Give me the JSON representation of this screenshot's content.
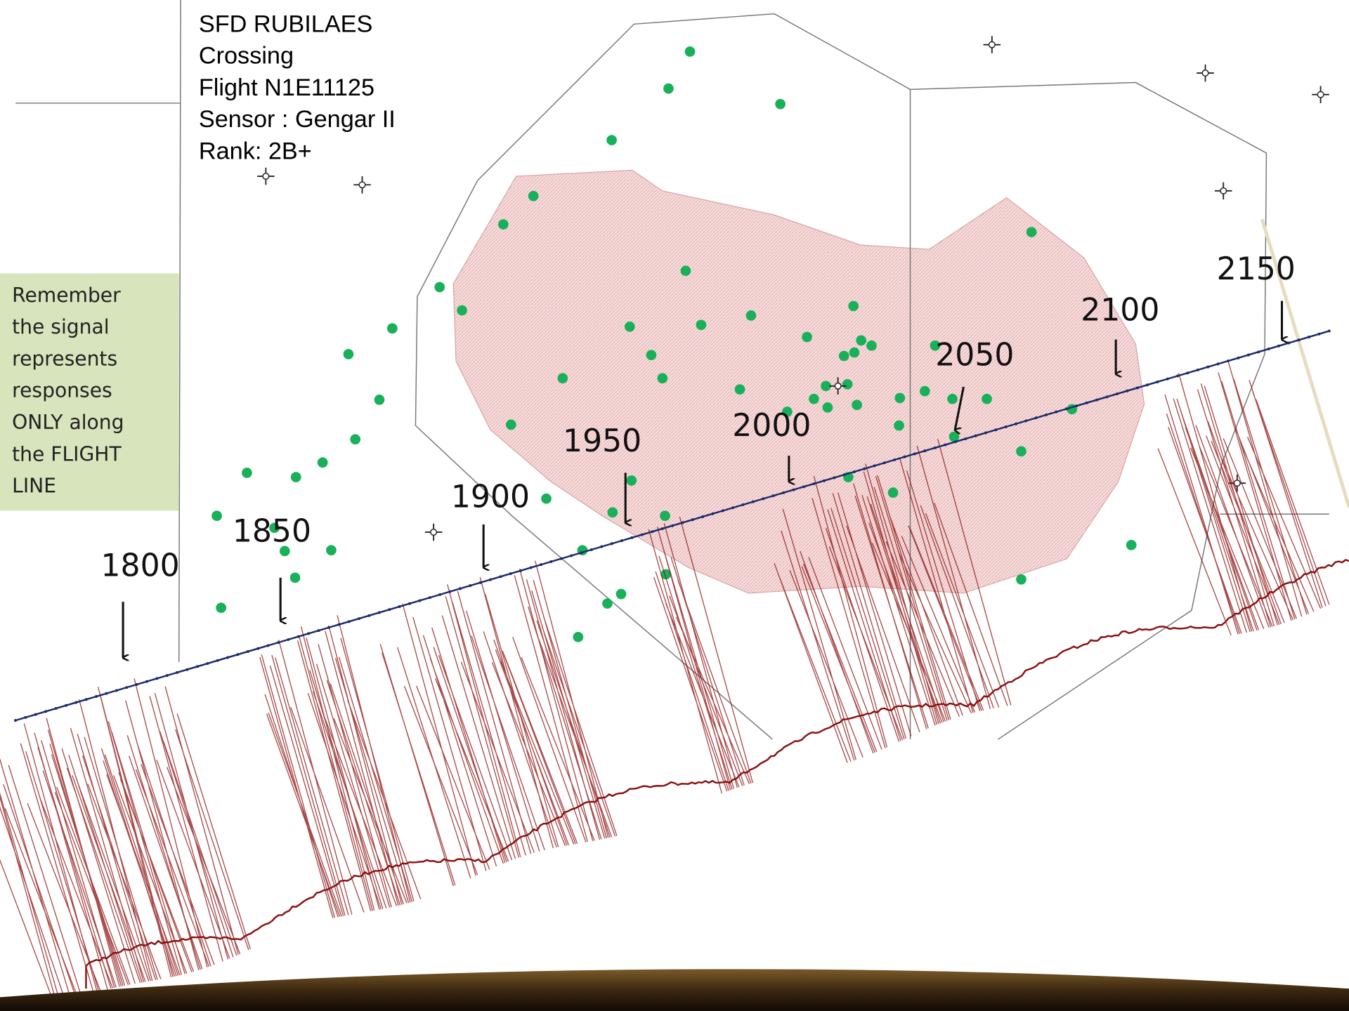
{
  "header": {
    "lines": [
      "SFD RUBILAES",
      "Crossing",
      "Flight N1E11125",
      "Sensor : Gengar II",
      "Rank: 2B+"
    ]
  },
  "note": {
    "lines": [
      "Remember",
      "the signal",
      "represents",
      "responses",
      "ONLY along",
      "the FLIGHT",
      "LINE"
    ]
  },
  "station_labels": [
    "1800",
    "1850",
    "1900",
    "1950",
    "2000",
    "2050",
    "2100",
    "2150"
  ]
}
